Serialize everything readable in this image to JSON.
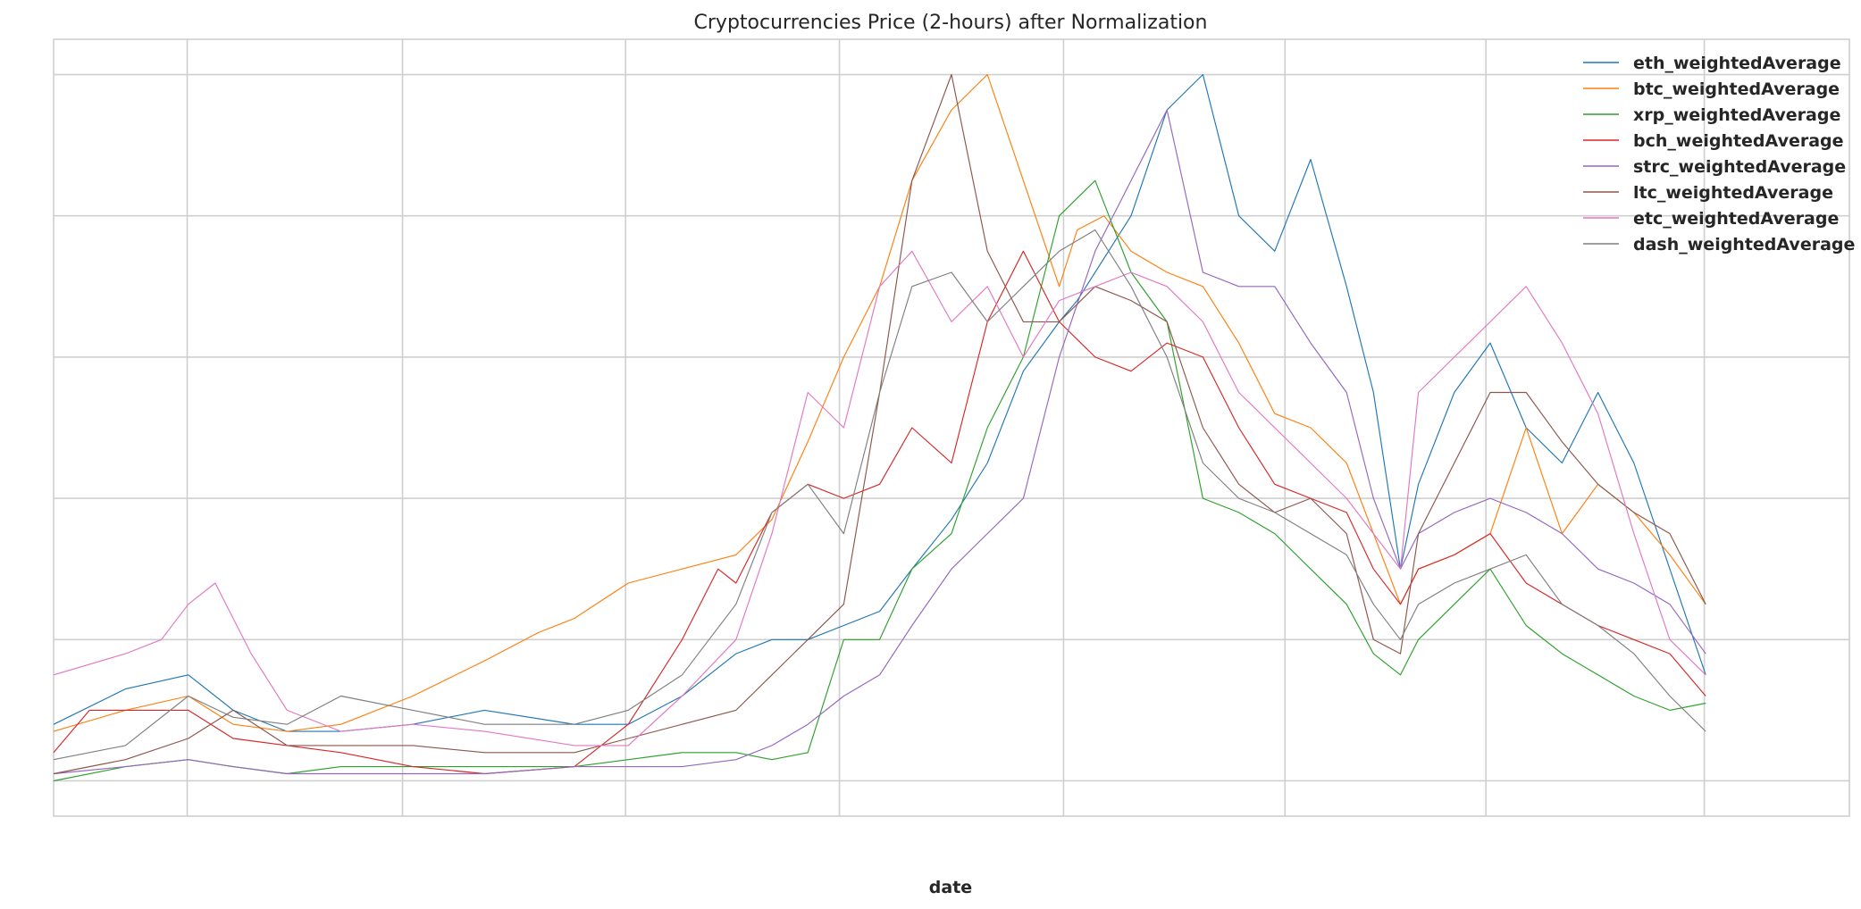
{
  "chart_data": {
    "type": "line",
    "title": "Cryptocurrencies Price (2-hours) after Normalization",
    "xlabel": "date",
    "ylabel": "",
    "xlim": [
      0,
      1000
    ],
    "ylim": [
      -0.05,
      1.05
    ],
    "grid": true,
    "legend_position": "top-right",
    "x_tick_positions": [
      74.4,
      194.3,
      318.5,
      437.6,
      562.4,
      685.7,
      797.6,
      919.2
    ],
    "y_tick_positions": [
      0.0,
      0.2,
      0.4,
      0.6,
      0.8,
      1.0
    ],
    "series": [
      {
        "name": "eth_weightedAverage",
        "color": "#1f77b4",
        "x": [
          0,
          40,
          75,
          100,
          130,
          160,
          200,
          240,
          290,
          320,
          350,
          380,
          400,
          420,
          440,
          460,
          478,
          500,
          520,
          540,
          560,
          570,
          585,
          600,
          620,
          640,
          660,
          680,
          700,
          720,
          735,
          750,
          760,
          780,
          800,
          820,
          840,
          860,
          880,
          900,
          920
        ],
        "values": [
          0.08,
          0.13,
          0.15,
          0.1,
          0.07,
          0.07,
          0.08,
          0.1,
          0.08,
          0.08,
          0.12,
          0.18,
          0.2,
          0.2,
          0.22,
          0.24,
          0.3,
          0.37,
          0.45,
          0.58,
          0.65,
          0.68,
          0.74,
          0.8,
          0.95,
          1.0,
          0.8,
          0.75,
          0.88,
          0.7,
          0.55,
          0.3,
          0.42,
          0.55,
          0.62,
          0.5,
          0.45,
          0.55,
          0.45,
          0.3,
          0.15
        ]
      },
      {
        "name": "btc_weightedAverage",
        "color": "#ff7f0e",
        "x": [
          0,
          40,
          75,
          100,
          130,
          160,
          200,
          240,
          270,
          290,
          320,
          350,
          380,
          400,
          420,
          440,
          460,
          478,
          500,
          520,
          540,
          560,
          570,
          585,
          600,
          620,
          640,
          660,
          680,
          700,
          720,
          735,
          750,
          760,
          780,
          800,
          820,
          840,
          860,
          880,
          900,
          920
        ],
        "values": [
          0.07,
          0.1,
          0.12,
          0.08,
          0.07,
          0.08,
          0.12,
          0.17,
          0.21,
          0.23,
          0.28,
          0.3,
          0.32,
          0.37,
          0.48,
          0.6,
          0.7,
          0.85,
          0.95,
          1.0,
          0.85,
          0.7,
          0.78,
          0.8,
          0.75,
          0.72,
          0.7,
          0.62,
          0.52,
          0.5,
          0.45,
          0.35,
          0.25,
          0.3,
          0.32,
          0.35,
          0.5,
          0.35,
          0.42,
          0.38,
          0.32,
          0.25
        ]
      },
      {
        "name": "xrp_weightedAverage",
        "color": "#2ca02c",
        "x": [
          0,
          40,
          75,
          100,
          130,
          160,
          200,
          240,
          290,
          320,
          350,
          380,
          400,
          420,
          440,
          460,
          478,
          500,
          520,
          540,
          560,
          580,
          600,
          620,
          640,
          660,
          680,
          700,
          720,
          735,
          750,
          760,
          780,
          800,
          820,
          840,
          860,
          880,
          900,
          920
        ],
        "values": [
          0.0,
          0.02,
          0.03,
          0.02,
          0.01,
          0.02,
          0.02,
          0.02,
          0.02,
          0.03,
          0.04,
          0.04,
          0.03,
          0.04,
          0.2,
          0.2,
          0.3,
          0.35,
          0.5,
          0.6,
          0.8,
          0.85,
          0.72,
          0.65,
          0.4,
          0.38,
          0.35,
          0.3,
          0.25,
          0.18,
          0.15,
          0.2,
          0.25,
          0.3,
          0.22,
          0.18,
          0.15,
          0.12,
          0.1,
          0.11
        ]
      },
      {
        "name": "bch_weightedAverage",
        "color": "#d62728",
        "x": [
          0,
          20,
          40,
          75,
          100,
          130,
          160,
          200,
          240,
          290,
          320,
          350,
          370,
          380,
          400,
          420,
          440,
          460,
          478,
          500,
          520,
          540,
          560,
          580,
          600,
          620,
          640,
          660,
          680,
          700,
          720,
          735,
          750,
          760,
          780,
          800,
          820,
          840,
          860,
          880,
          900,
          920
        ],
        "values": [
          0.04,
          0.1,
          0.1,
          0.1,
          0.06,
          0.05,
          0.04,
          0.02,
          0.01,
          0.02,
          0.08,
          0.2,
          0.3,
          0.28,
          0.38,
          0.42,
          0.4,
          0.42,
          0.5,
          0.45,
          0.65,
          0.75,
          0.65,
          0.6,
          0.58,
          0.62,
          0.6,
          0.5,
          0.42,
          0.4,
          0.38,
          0.3,
          0.25,
          0.3,
          0.32,
          0.35,
          0.28,
          0.25,
          0.22,
          0.2,
          0.18,
          0.12
        ]
      },
      {
        "name": "strc_weightedAverage",
        "color": "#9467bd",
        "x": [
          0,
          40,
          75,
          100,
          130,
          160,
          200,
          240,
          290,
          320,
          350,
          380,
          400,
          420,
          440,
          460,
          478,
          500,
          520,
          540,
          560,
          580,
          600,
          620,
          640,
          660,
          680,
          700,
          720,
          735,
          750,
          760,
          780,
          800,
          820,
          840,
          860,
          880,
          900,
          920
        ],
        "values": [
          0.01,
          0.02,
          0.03,
          0.02,
          0.01,
          0.01,
          0.01,
          0.01,
          0.02,
          0.02,
          0.02,
          0.03,
          0.05,
          0.08,
          0.12,
          0.15,
          0.22,
          0.3,
          0.35,
          0.4,
          0.6,
          0.75,
          0.85,
          0.95,
          0.72,
          0.7,
          0.7,
          0.62,
          0.55,
          0.4,
          0.3,
          0.35,
          0.38,
          0.4,
          0.38,
          0.35,
          0.3,
          0.28,
          0.25,
          0.18
        ]
      },
      {
        "name": "ltc_weightedAverage",
        "color": "#8c564b",
        "x": [
          0,
          40,
          75,
          100,
          130,
          160,
          200,
          240,
          290,
          320,
          350,
          380,
          400,
          420,
          440,
          460,
          478,
          500,
          520,
          540,
          560,
          580,
          600,
          620,
          640,
          660,
          680,
          700,
          720,
          735,
          750,
          760,
          780,
          800,
          820,
          840,
          860,
          880,
          900,
          920
        ],
        "values": [
          0.01,
          0.03,
          0.06,
          0.1,
          0.05,
          0.05,
          0.05,
          0.04,
          0.04,
          0.06,
          0.08,
          0.1,
          0.15,
          0.2,
          0.25,
          0.55,
          0.85,
          1.0,
          0.75,
          0.65,
          0.65,
          0.7,
          0.68,
          0.65,
          0.5,
          0.42,
          0.38,
          0.4,
          0.35,
          0.2,
          0.18,
          0.35,
          0.45,
          0.55,
          0.55,
          0.48,
          0.42,
          0.38,
          0.35,
          0.25
        ]
      },
      {
        "name": "etc_weightedAverage",
        "color": "#e377c2",
        "x": [
          0,
          40,
          60,
          75,
          90,
          110,
          130,
          160,
          200,
          240,
          290,
          320,
          350,
          380,
          400,
          420,
          440,
          460,
          478,
          500,
          520,
          540,
          560,
          580,
          600,
          620,
          640,
          660,
          680,
          700,
          720,
          735,
          750,
          760,
          780,
          800,
          820,
          840,
          860,
          880,
          900,
          920
        ],
        "values": [
          0.15,
          0.18,
          0.2,
          0.25,
          0.28,
          0.18,
          0.1,
          0.07,
          0.08,
          0.07,
          0.05,
          0.05,
          0.12,
          0.2,
          0.35,
          0.55,
          0.5,
          0.7,
          0.75,
          0.65,
          0.7,
          0.6,
          0.68,
          0.7,
          0.72,
          0.7,
          0.65,
          0.55,
          0.5,
          0.45,
          0.4,
          0.35,
          0.3,
          0.55,
          0.6,
          0.65,
          0.7,
          0.62,
          0.52,
          0.35,
          0.2,
          0.15
        ]
      },
      {
        "name": "dash_weightedAverage",
        "color": "#7f7f7f",
        "x": [
          0,
          40,
          75,
          100,
          130,
          160,
          200,
          240,
          290,
          320,
          350,
          380,
          400,
          420,
          440,
          460,
          478,
          500,
          520,
          540,
          560,
          580,
          600,
          620,
          640,
          660,
          680,
          700,
          720,
          735,
          750,
          760,
          780,
          800,
          820,
          840,
          860,
          880,
          900,
          920
        ],
        "values": [
          0.03,
          0.05,
          0.12,
          0.09,
          0.08,
          0.12,
          0.1,
          0.08,
          0.08,
          0.1,
          0.15,
          0.25,
          0.38,
          0.42,
          0.35,
          0.55,
          0.7,
          0.72,
          0.65,
          0.7,
          0.75,
          0.78,
          0.7,
          0.6,
          0.45,
          0.4,
          0.38,
          0.35,
          0.32,
          0.25,
          0.2,
          0.25,
          0.28,
          0.3,
          0.32,
          0.25,
          0.22,
          0.18,
          0.12,
          0.07
        ]
      }
    ]
  }
}
